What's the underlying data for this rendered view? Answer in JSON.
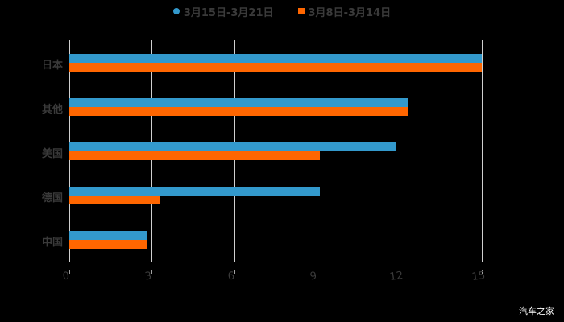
{
  "chart_data": {
    "type": "bar",
    "orientation": "horizontal",
    "title": "",
    "categories": [
      "日本",
      "其他",
      "美国",
      "德国",
      "中国"
    ],
    "series": [
      {
        "name": "3月15日-3月21日",
        "color": "#3399cc",
        "values": [
          15.0,
          12.3,
          11.9,
          9.1,
          2.8
        ]
      },
      {
        "name": "3月8日-3月14日",
        "color": "#ff6600",
        "values": [
          15.0,
          12.3,
          9.1,
          3.3,
          2.8
        ]
      }
    ],
    "xlabel": "",
    "ylabel": "",
    "xlim": [
      0,
      15
    ],
    "xticks": [
      "0",
      "3",
      "6",
      "9",
      "12",
      "15"
    ],
    "grid": true,
    "legend_position": "top"
  },
  "legend": {
    "items": [
      {
        "label": "3月15日-3月21日",
        "color": "#3399cc"
      },
      {
        "label": "3月8日-3月14日",
        "color": "#ff6600"
      }
    ]
  },
  "watermark": "汽车之家"
}
